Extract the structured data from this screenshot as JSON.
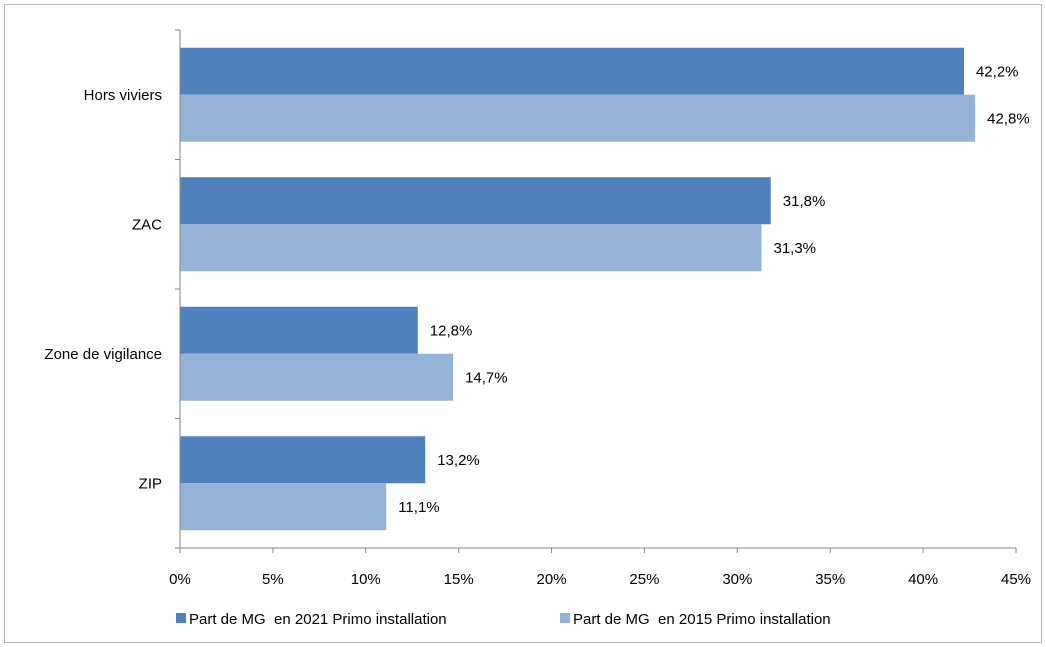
{
  "chart_data": {
    "type": "bar",
    "orientation": "horizontal",
    "categories": [
      "Hors viviers",
      "ZAC",
      "Zone de vigilance",
      "ZIP"
    ],
    "series": [
      {
        "name": "Part de MG  en 2021 Primo installation",
        "values": [
          42.2,
          31.8,
          12.8,
          13.2
        ],
        "labels": [
          "42,2%",
          "31,8%",
          "12,8%",
          "13,2%"
        ],
        "color": "#4f81bd"
      },
      {
        "name": "Part de MG  en 2015 Primo installation",
        "values": [
          42.8,
          31.3,
          14.7,
          11.1
        ],
        "labels": [
          "42,8%",
          "31,3%",
          "14,7%",
          "11,1%"
        ],
        "color": "#95b3d7"
      }
    ],
    "xlim": [
      0,
      45
    ],
    "xticks": [
      0,
      5,
      10,
      15,
      20,
      25,
      30,
      35,
      40,
      45
    ],
    "xtick_labels": [
      "0%",
      "5%",
      "10%",
      "15%",
      "20%",
      "25%",
      "30%",
      "35%",
      "40%",
      "45%"
    ],
    "grid": false,
    "legend_position": "bottom"
  }
}
